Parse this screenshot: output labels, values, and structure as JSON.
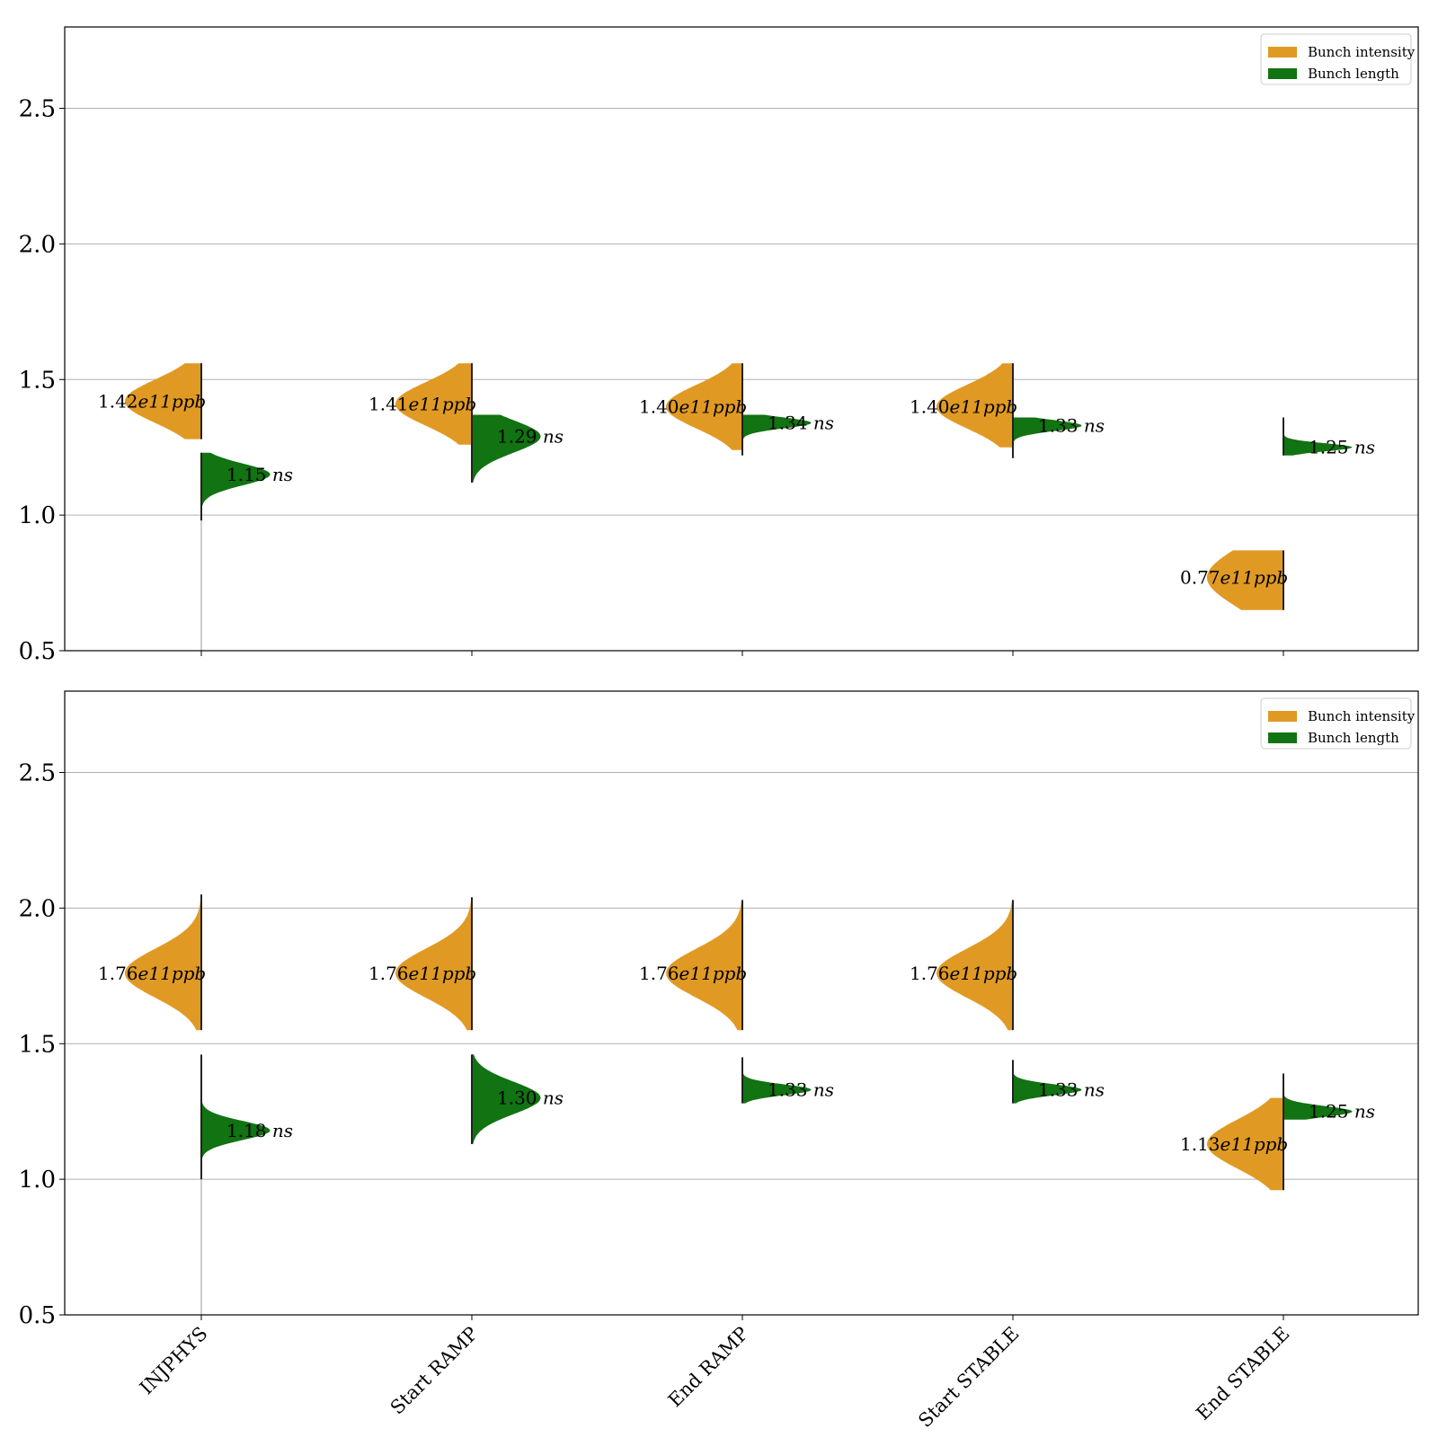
{
  "colors": {
    "intensity": "#e09a24",
    "length": "#117311",
    "grid": "#b0b0b0",
    "axis": "#000000"
  },
  "chart_data": [
    {
      "type": "violin",
      "ylim": [
        0.5,
        2.8
      ],
      "yticks": [
        "0.5",
        "1.0",
        "1.5",
        "2.0",
        "2.5"
      ],
      "ytick_values": [
        0.5,
        1.0,
        1.5,
        2.0,
        2.5
      ],
      "grid": "horizontal",
      "legend": {
        "placement": "top-right",
        "entries": [
          "Bunch intensity",
          "Bunch length"
        ]
      },
      "categories": [
        "INJPHYS",
        "Start RAMP",
        "End RAMP",
        "Start STABLE",
        "End STABLE"
      ],
      "series": [
        {
          "name": "Bunch intensity",
          "side": "left",
          "values": [
            1.42,
            1.41,
            1.4,
            1.4,
            0.77
          ],
          "ranges": [
            [
              1.28,
              1.56
            ],
            [
              1.26,
              1.56
            ],
            [
              1.24,
              1.56
            ],
            [
              1.25,
              1.56
            ],
            [
              0.65,
              0.87
            ]
          ],
          "spread": [
            0.08,
            0.08,
            0.08,
            0.08,
            0.11
          ],
          "labels": [
            "1.42",
            "1.41",
            "1.40",
            "1.40",
            "0.77"
          ],
          "unit": "e11ppb"
        },
        {
          "name": "Bunch length",
          "side": "right",
          "values": [
            1.15,
            1.29,
            1.34,
            1.33,
            1.25
          ],
          "ranges": [
            [
              0.98,
              1.23
            ],
            [
              1.12,
              1.37
            ],
            [
              1.22,
              1.37
            ],
            [
              1.21,
              1.36
            ],
            [
              1.22,
              1.36
            ]
          ],
          "spread": [
            0.04,
            0.06,
            0.02,
            0.02,
            0.015
          ],
          "labels": [
            "1.15",
            "1.29",
            "1.34",
            "1.33",
            "1.25"
          ],
          "unit": "ns"
        }
      ]
    },
    {
      "type": "violin",
      "ylim": [
        0.5,
        2.8
      ],
      "yticks": [
        "0.5",
        "1.0",
        "1.5",
        "2.0",
        "2.5"
      ],
      "ytick_values": [
        0.5,
        1.0,
        1.5,
        2.0,
        2.5
      ],
      "grid": "horizontal",
      "legend": {
        "placement": "top-right",
        "entries": [
          "Bunch intensity",
          "Bunch length"
        ]
      },
      "categories": [
        "INJPHYS",
        "Start RAMP",
        "End RAMP",
        "Start STABLE",
        "End STABLE"
      ],
      "series": [
        {
          "name": "Bunch intensity",
          "side": "left",
          "values": [
            1.76,
            1.76,
            1.76,
            1.76,
            1.13
          ],
          "ranges": [
            [
              1.55,
              2.05
            ],
            [
              1.55,
              2.04
            ],
            [
              1.55,
              2.03
            ],
            [
              1.55,
              2.03
            ],
            [
              0.96,
              1.3
            ]
          ],
          "spread": [
            0.09,
            0.09,
            0.09,
            0.09,
            0.09
          ],
          "labels": [
            "1.76",
            "1.76",
            "1.76",
            "1.76",
            "1.13"
          ],
          "unit": "e11ppb"
        },
        {
          "name": "Bunch length",
          "side": "right",
          "values": [
            1.18,
            1.3,
            1.33,
            1.33,
            1.25
          ],
          "ranges": [
            [
              1.0,
              1.46
            ],
            [
              1.13,
              1.46
            ],
            [
              1.28,
              1.45
            ],
            [
              1.28,
              1.44
            ],
            [
              1.22,
              1.39
            ]
          ],
          "spread": [
            0.035,
            0.06,
            0.02,
            0.02,
            0.02
          ],
          "labels": [
            "1.18",
            "1.30",
            "1.33",
            "1.33",
            "1.25"
          ],
          "unit": "ns"
        }
      ]
    }
  ]
}
